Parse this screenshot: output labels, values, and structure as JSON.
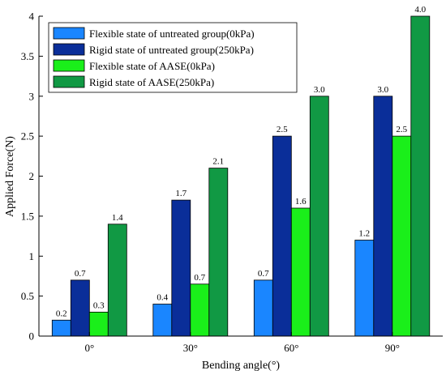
{
  "chart_data": {
    "type": "bar",
    "title": "",
    "xlabel": "Bending angle(°)",
    "ylabel": "Applied Force(N)",
    "categories": [
      "0°",
      "30°",
      "60°",
      "90°"
    ],
    "ylim": [
      0,
      4
    ],
    "yticks": [
      0,
      0.5,
      1,
      1.5,
      2,
      2.5,
      3,
      3.5,
      4
    ],
    "ytick_labels": [
      "0",
      "0.5",
      "1",
      "1.5",
      "2",
      "2.5",
      "3",
      "3.5",
      "4"
    ],
    "grid": false,
    "legend_position": "top-left",
    "series": [
      {
        "name": "Flexible state of untreated group(0kPa)",
        "color": "#1a86ff",
        "values": [
          0.2,
          0.4,
          0.7,
          1.2
        ],
        "labels": [
          "0.2",
          "0.4",
          "0.7",
          "1.2"
        ]
      },
      {
        "name": "Rigid state of untreated group(250kPa)",
        "color": "#0a2e99",
        "values": [
          0.7,
          1.7,
          2.5,
          3.0
        ],
        "labels": [
          "0.7",
          "1.7",
          "2.5",
          "3.0"
        ]
      },
      {
        "name": "Flexible state of AASE(0kPa)",
        "color": "#1aef1a",
        "values": [
          0.3,
          0.65,
          1.6,
          2.5
        ],
        "labels": [
          "0.3",
          "0.7",
          "1.6",
          "2.5"
        ]
      },
      {
        "name": "Rigid state of AASE(250kPa)",
        "color": "#119944",
        "values": [
          1.4,
          2.1,
          3.0,
          4.0
        ],
        "labels": [
          "1.4",
          "2.1",
          "3.0",
          "4.0"
        ]
      }
    ]
  }
}
